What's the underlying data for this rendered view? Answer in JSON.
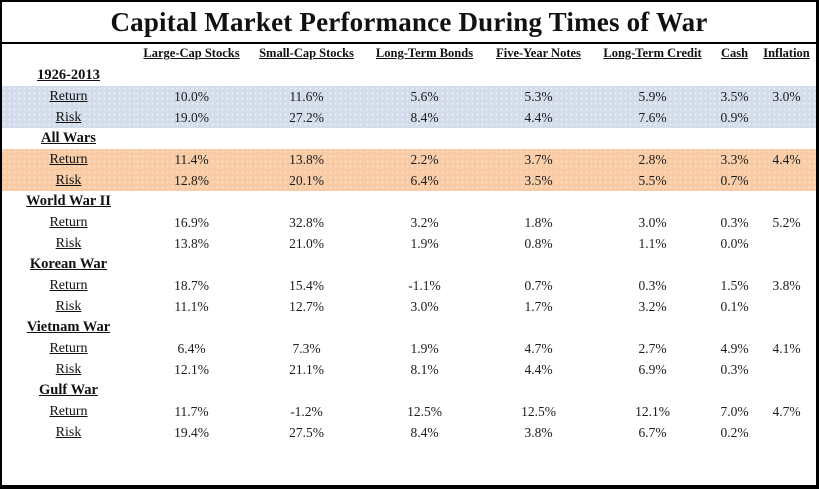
{
  "title": "Capital Market Performance During Times of War",
  "colors": {
    "highlight_blue": "#d3dcea",
    "highlight_orange": "#f8cba4",
    "border": "#000000",
    "text": "#111111"
  },
  "chart_data": {
    "type": "table",
    "title": "Capital Market Performance During Times of War",
    "columns": [
      "Large-Cap Stocks",
      "Small-Cap Stocks",
      "Long-Term Bonds",
      "Five-Year Notes",
      "Long-Term Credit",
      "Cash",
      "Inflation"
    ],
    "row_metrics": [
      "Return",
      "Risk"
    ],
    "sections": [
      {
        "name": "1926-2013",
        "highlight": "blue",
        "rows": [
          {
            "label": "Return",
            "values": [
              "10.0%",
              "11.6%",
              "5.6%",
              "5.3%",
              "5.9%",
              "3.5%",
              "3.0%"
            ]
          },
          {
            "label": "Risk",
            "values": [
              "19.0%",
              "27.2%",
              "8.4%",
              "4.4%",
              "7.6%",
              "0.9%",
              ""
            ]
          }
        ]
      },
      {
        "name": "All Wars",
        "highlight": "orange",
        "rows": [
          {
            "label": "Return",
            "values": [
              "11.4%",
              "13.8%",
              "2.2%",
              "3.7%",
              "2.8%",
              "3.3%",
              "4.4%"
            ]
          },
          {
            "label": "Risk",
            "values": [
              "12.8%",
              "20.1%",
              "6.4%",
              "3.5%",
              "5.5%",
              "0.7%",
              ""
            ]
          }
        ]
      },
      {
        "name": "World War II",
        "highlight": null,
        "rows": [
          {
            "label": "Return",
            "values": [
              "16.9%",
              "32.8%",
              "3.2%",
              "1.8%",
              "3.0%",
              "0.3%",
              "5.2%"
            ]
          },
          {
            "label": "Risk",
            "values": [
              "13.8%",
              "21.0%",
              "1.9%",
              "0.8%",
              "1.1%",
              "0.0%",
              ""
            ]
          }
        ]
      },
      {
        "name": "Korean War",
        "highlight": null,
        "rows": [
          {
            "label": "Return",
            "values": [
              "18.7%",
              "15.4%",
              "-1.1%",
              "0.7%",
              "0.3%",
              "1.5%",
              "3.8%"
            ]
          },
          {
            "label": "Risk",
            "values": [
              "11.1%",
              "12.7%",
              "3.0%",
              "1.7%",
              "3.2%",
              "0.1%",
              ""
            ]
          }
        ]
      },
      {
        "name": "Vietnam War",
        "highlight": null,
        "rows": [
          {
            "label": "Return",
            "values": [
              "6.4%",
              "7.3%",
              "1.9%",
              "4.7%",
              "2.7%",
              "4.9%",
              "4.1%"
            ]
          },
          {
            "label": "Risk",
            "values": [
              "12.1%",
              "21.1%",
              "8.1%",
              "4.4%",
              "6.9%",
              "0.3%",
              ""
            ]
          }
        ]
      },
      {
        "name": "Gulf War",
        "highlight": null,
        "rows": [
          {
            "label": "Return",
            "values": [
              "11.7%",
              "-1.2%",
              "12.5%",
              "12.5%",
              "12.1%",
              "7.0%",
              "4.7%"
            ]
          },
          {
            "label": "Risk",
            "values": [
              "19.4%",
              "27.5%",
              "8.4%",
              "3.8%",
              "6.7%",
              "0.2%",
              ""
            ]
          }
        ]
      }
    ]
  }
}
